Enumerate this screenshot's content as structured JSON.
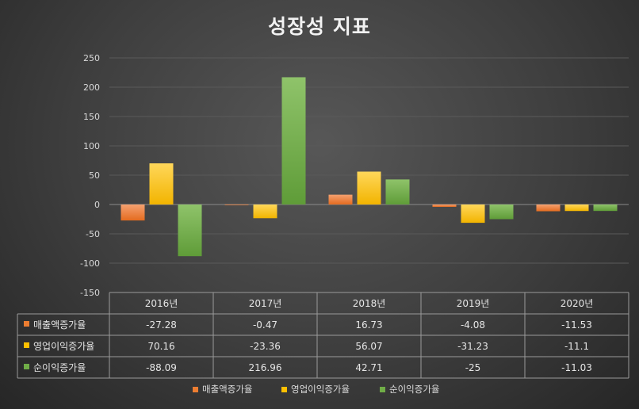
{
  "chart_data": {
    "type": "bar",
    "title": "성장성 지표",
    "categories": [
      "2016년",
      "2017년",
      "2018년",
      "2019년",
      "2020년"
    ],
    "series": [
      {
        "name": "매출액증가율",
        "color": "#ed7d31",
        "values": [
          -27.28,
          -0.47,
          16.73,
          -4.08,
          -11.53
        ],
        "labels": [
          "-27.28",
          "-0.47",
          "16.73",
          "-4.08",
          "-11.53"
        ]
      },
      {
        "name": "영업이익증가율",
        "color": "#ffc000",
        "values": [
          70.16,
          -23.36,
          56.07,
          -31.23,
          -11.1
        ],
        "labels": [
          "70.16",
          "-23.36",
          "56.07",
          "-31.23",
          "-11.1"
        ]
      },
      {
        "name": "순이익증가율",
        "color": "#70ad47",
        "values": [
          -88.09,
          216.96,
          42.71,
          -25,
          -11.03
        ],
        "labels": [
          "-88.09",
          "216.96",
          "42.71",
          "-25",
          "-11.03"
        ]
      }
    ],
    "ylim": [
      -150,
      250
    ],
    "yticks": [
      "-150",
      "-100",
      "-50",
      "0",
      "50",
      "100",
      "150",
      "200",
      "250"
    ],
    "grid": true,
    "legend": "bottom",
    "data_table": true
  }
}
